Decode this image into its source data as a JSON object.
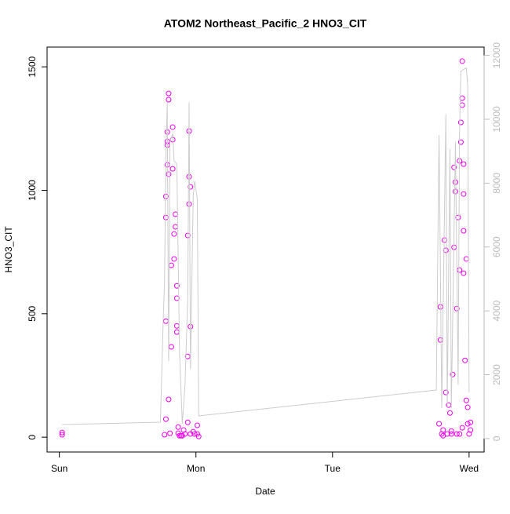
{
  "chart_data": {
    "type": "scatter",
    "title": "ATOM2 Northeast_Pacific_2 HNO3_CIT",
    "x_label": "Date",
    "y_label": "HNO3_CIT",
    "xlim": [
      -0.09,
      3.11
    ],
    "xticks": [
      {
        "value": 0,
        "label": "Sun"
      },
      {
        "value": 1,
        "label": "Mon"
      },
      {
        "value": 2,
        "label": "Tue"
      },
      {
        "value": 3,
        "label": "Wed"
      }
    ],
    "ylim": [
      -60,
      1580
    ],
    "yticks": [
      0,
      500,
      1000,
      1500
    ],
    "y2lim": [
      -420,
      12260
    ],
    "y2ticks": [
      0,
      2000,
      4000,
      6000,
      8000,
      10000,
      12000
    ],
    "y2_color": "#bbbbbb",
    "series": [
      {
        "type": "scatter",
        "color": "#ee00ee",
        "x": [
          0.02,
          0.02,
          0.77,
          0.78,
          0.78,
          0.78,
          0.78,
          0.79,
          0.79,
          0.79,
          0.79,
          0.8,
          0.8,
          0.8,
          0.8,
          0.81,
          0.82,
          0.82,
          0.83,
          0.83,
          0.83,
          0.84,
          0.84,
          0.85,
          0.85,
          0.86,
          0.86,
          0.86,
          0.86,
          0.87,
          0.87,
          0.88,
          0.89,
          0.9,
          0.91,
          0.92,
          0.94,
          0.94,
          0.95,
          0.95,
          0.95,
          0.96,
          0.96,
          0.96,
          0.98,
          0.99,
          1.01,
          1.01,
          1.02,
          0.94,
          2.78,
          2.79,
          2.79,
          2.8,
          2.81,
          2.82,
          2.83,
          2.83,
          2.84,
          2.85,
          2.86,
          2.87,
          2.88,
          2.89,
          2.89,
          2.9,
          2.9,
          2.91,
          2.91,
          2.92,
          2.93,
          2.93,
          2.94,
          2.94,
          2.95,
          2.95,
          2.95,
          2.96,
          2.96,
          2.96,
          2.96,
          2.97,
          2.98,
          2.98,
          2.99,
          2.99,
          3.0,
          3.01,
          3.01,
          2.81,
          2.87,
          2.93,
          2.95
        ],
        "values": [
          19,
          10,
          10,
          73,
          470,
          890,
          975,
          1103,
          1198,
          1236,
          1183,
          1392,
          1367,
          153,
          1065,
          16,
          696,
          366,
          1256,
          1205,
          1087,
          722,
          823,
          852,
          903,
          613,
          426,
          451,
          563,
          16,
          41,
          6,
          6,
          6,
          29,
          13,
          327,
          60,
          944,
          1055,
          1240,
          1014,
          448,
          13,
          22,
          13,
          48,
          13,
          3,
          817,
          54,
          394,
          528,
          13,
          29,
          798,
          757,
          181,
          13,
          130,
          98,
          25,
          254,
          769,
          1093,
          1033,
          995,
          13,
          521,
          890,
          677,
          1119,
          1275,
          1195,
          1523,
          1373,
          1345,
          985,
          1106,
          664,
          836,
          311,
          722,
          149,
          121,
          54,
          13,
          29,
          60,
          6,
          13,
          13,
          38
        ]
      },
      {
        "type": "line",
        "color": "#cccccc",
        "axis": "y2",
        "x": [
          0.02,
          0.74,
          0.76,
          0.77,
          0.78,
          0.79,
          0.8,
          0.81,
          0.83,
          0.84,
          0.86,
          0.88,
          0.9,
          0.92,
          0.94,
          0.95,
          0.96,
          0.98,
          0.99,
          1.01,
          1.02,
          2.76,
          2.78,
          2.8,
          2.83,
          2.84,
          2.86,
          2.87,
          2.9,
          2.92,
          2.93,
          2.94,
          2.96,
          2.98,
          2.99,
          3.0
        ],
        "values": [
          440,
          515,
          3660,
          4880,
          8810,
          10530,
          2430,
          9300,
          9550,
          8690,
          8610,
          2670,
          470,
          1690,
          4390,
          10530,
          2180,
          7580,
          8070,
          7530,
          710,
          1520,
          9500,
          960,
          10160,
          960,
          9060,
          960,
          9300,
          1690,
          9590,
          11510,
          11560,
          11610,
          11020,
          1450
        ]
      }
    ]
  }
}
